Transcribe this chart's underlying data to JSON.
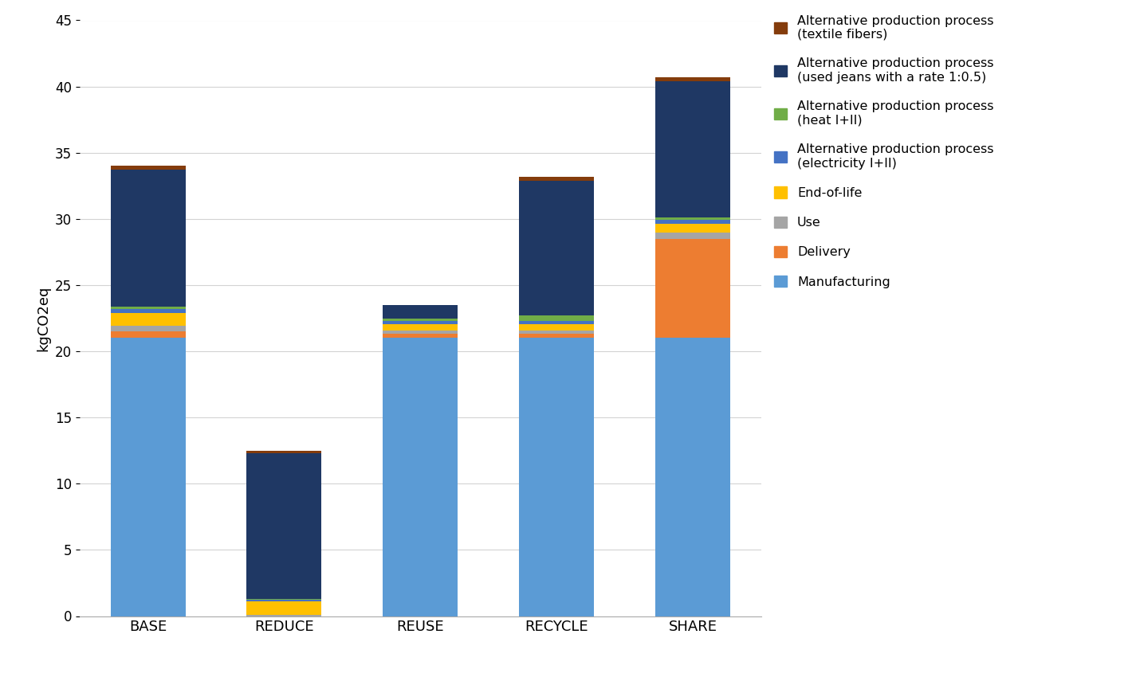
{
  "categories": [
    "BASE",
    "REDUCE",
    "REUSE",
    "RECYCLE",
    "SHARE"
  ],
  "series": [
    {
      "label": "Manufacturing",
      "color": "#5B9BD5",
      "values": [
        21.0,
        0.0,
        21.0,
        21.0,
        21.0
      ]
    },
    {
      "label": "Delivery",
      "color": "#ED7D31",
      "values": [
        0.5,
        0.0,
        0.3,
        0.3,
        7.5
      ]
    },
    {
      "label": "Use",
      "color": "#A5A5A5",
      "values": [
        0.4,
        0.1,
        0.25,
        0.25,
        0.45
      ]
    },
    {
      "label": "End-of-life",
      "color": "#FFC000",
      "values": [
        1.0,
        1.0,
        0.5,
        0.5,
        0.7
      ]
    },
    {
      "label": "Alternative production process\n(electricity I+II)",
      "color": "#4472C4",
      "values": [
        0.3,
        0.15,
        0.25,
        0.25,
        0.25
      ]
    },
    {
      "label": "Alternative production process\n(heat I+II)",
      "color": "#70AD47",
      "values": [
        0.2,
        0.05,
        0.2,
        0.4,
        0.2
      ]
    },
    {
      "label": "Alternative production process\n(used jeans with a rate 1:0.5)",
      "color": "#1F3864",
      "values": [
        10.3,
        11.0,
        1.0,
        10.2,
        10.3
      ]
    },
    {
      "label": "Alternative production process\n(textile fibers)",
      "color": "#843C0C",
      "values": [
        0.3,
        0.2,
        0.0,
        0.3,
        0.3
      ]
    }
  ],
  "ylabel": "kgCO2eq",
  "ylim": [
    0,
    45
  ],
  "yticks": [
    0,
    5,
    10,
    15,
    20,
    25,
    30,
    35,
    40,
    45
  ],
  "bar_width": 0.55,
  "background_color": "#FFFFFF",
  "grid_color": "#D3D3D3",
  "legend_labels": [
    "Alternative production process\n(textile fibers)",
    "Alternative production process\n(used jeans with a rate 1:0.5)",
    "Alternative production process\n(heat I+II)",
    "Alternative production process\n(electricity I+II)",
    "End-of-life",
    "Use",
    "Delivery",
    "Manufacturing"
  ],
  "legend_colors": [
    "#843C0C",
    "#1F3864",
    "#70AD47",
    "#4472C4",
    "#FFC000",
    "#A5A5A5",
    "#ED7D31",
    "#5B9BD5"
  ]
}
